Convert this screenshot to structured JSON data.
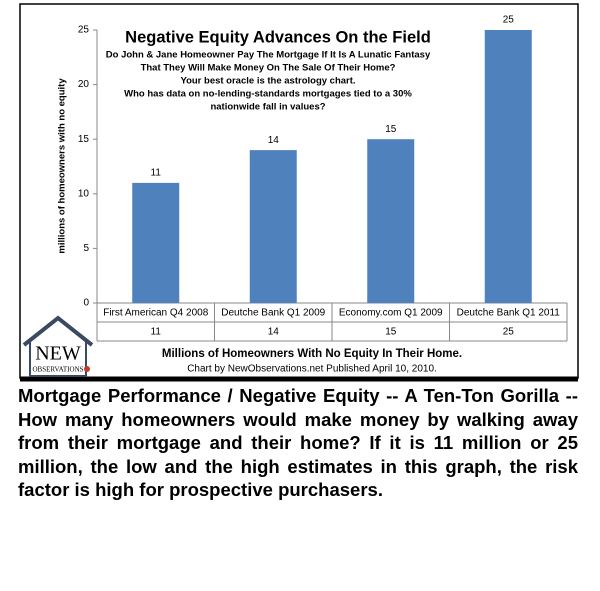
{
  "chart_data": {
    "type": "bar",
    "title": "Negative Equity Advances On the Field",
    "subtitle": [
      "Do John & Jane Homeowner Pay The Mortgage If It Is A Lunatic Fantasy",
      "That They Will Make Money On The Sale Of Their Home?",
      "Your best oracle is the astrology chart.",
      "Who has data on no-lending-standards mortgages tied to a 30%",
      "nationwide fall in values?"
    ],
    "categories": [
      "First American Q4 2008",
      "Deutche Bank Q1 2009",
      "Economy.com Q1 2009",
      "Deutche Bank Q1 2011"
    ],
    "values": [
      11,
      14,
      15,
      25
    ],
    "color": "#4f81bd",
    "ylim": [
      0,
      25
    ],
    "yticks": [
      0,
      5,
      10,
      15,
      20,
      25
    ],
    "ylabel": "millions of homeowners with no equity",
    "xlabel": "Millions of Homeowners With No Equity In Their Home.",
    "note": "Chart by NewObservations.net  Published  April 10, 2010.",
    "grid": false
  },
  "logo": {
    "text": "NEW",
    "subtext": "OBSERVATIONS"
  },
  "caption": "Mortgage Performance / Negative Equity -- A Ten-Ton Gorilla -- How many homeowners would make money by walking away from their mortgage and their home? If it is 11 million or 25 million, the low and the high estimates in this graph, the risk factor is high for prospective purchasers."
}
